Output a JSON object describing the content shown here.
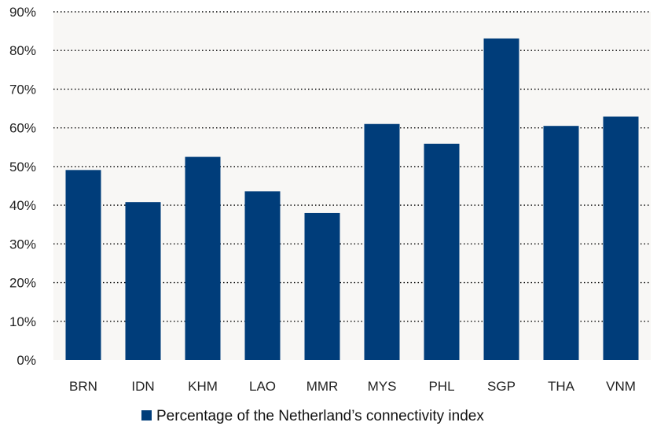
{
  "chart_data": {
    "type": "bar",
    "categories": [
      "BRN",
      "IDN",
      "KHM",
      "LAO",
      "MMR",
      "MYS",
      "PHL",
      "SGP",
      "THA",
      "VNM"
    ],
    "series": [
      {
        "name": "Percentage of the Netherland’s connectivity index",
        "values": [
          49.1,
          40.8,
          52.5,
          43.6,
          38.0,
          61.0,
          55.9,
          83.1,
          60.5,
          62.9
        ]
      }
    ],
    "y_ticks": [
      "0%",
      "10%",
      "20%",
      "30%",
      "40%",
      "50%",
      "60%",
      "70%",
      "80%",
      "90%"
    ],
    "ylim": [
      0,
      90
    ],
    "grid": "horizontal dotted",
    "legend_position": "bottom",
    "colors": {
      "bar": "#003d7a",
      "plot_background": "#f8f7f5",
      "grid": "#000000"
    }
  }
}
